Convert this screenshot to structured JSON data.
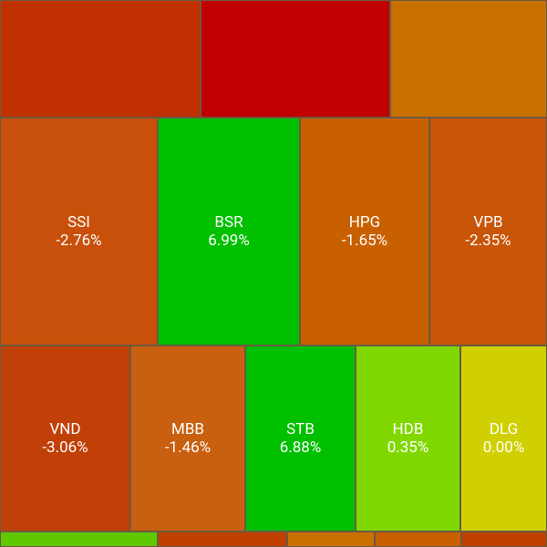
{
  "tiles": [
    {
      "symbol": "SSI",
      "change": "-2.76%"
    },
    {
      "symbol": "BSR",
      "change": "6.99%"
    },
    {
      "symbol": "HPG",
      "change": "-1.65%"
    },
    {
      "symbol": "VPB",
      "change": "-2.35%"
    },
    {
      "symbol": "VND",
      "change": "-3.06%"
    },
    {
      "symbol": "MBB",
      "change": "-1.46%"
    },
    {
      "symbol": "STB",
      "change": "6.88%"
    },
    {
      "symbol": "HDB",
      "change": "0.35%"
    },
    {
      "symbol": "DLG",
      "change": "0.00%"
    }
  ]
}
